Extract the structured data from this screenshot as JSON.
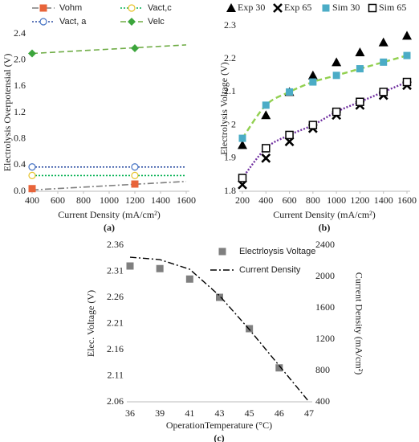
{
  "chart_data": [
    {
      "type": "line",
      "panel_label": "(a)",
      "xlabel": "Current Density (mA/cm²)",
      "ylabel": "Electrolysis Overpotensial (V)",
      "xlim": [
        400,
        1600
      ],
      "xticks": [
        400,
        600,
        800,
        1000,
        1200,
        1400,
        1600
      ],
      "ylim": [
        0,
        2.4
      ],
      "yticks": [
        {
          "value": 0,
          "label": "0.0"
        },
        0.4,
        0.8,
        1.2,
        1.6,
        {
          "value": 2,
          "label": "2.0"
        },
        2.4
      ],
      "series": [
        {
          "name": "Vohm",
          "color": "#7f7f7f",
          "line_style": "dashdot",
          "marker": "square",
          "marker_color": "#e8643a",
          "line_x": [
            400,
            1600
          ],
          "line_values": [
            0.02,
            0.15
          ],
          "x": [
            400,
            1200
          ],
          "values": [
            0.04,
            0.11
          ]
        },
        {
          "name": "Vact,c",
          "color": "#00b050",
          "line_style": "dotted",
          "marker": "open-circle",
          "marker_color": "#e6c229",
          "line_x": [
            400,
            1600
          ],
          "line_values": [
            0.24,
            0.24
          ],
          "x": [
            400,
            1200
          ],
          "values": [
            0.24,
            0.24
          ]
        },
        {
          "name": "Vact, a",
          "color": "#2e4fa3",
          "line_style": "dotted",
          "marker": "open-circle",
          "marker_color": "#4472c4",
          "line_x": [
            400,
            1600
          ],
          "line_values": [
            0.37,
            0.37
          ],
          "x": [
            400,
            1200
          ],
          "values": [
            0.37,
            0.37
          ]
        },
        {
          "name": "Velc",
          "color": "#70ad47",
          "line_style": "dashed",
          "marker": "diamond",
          "marker_color": "#3ca53c",
          "line_x": [
            400,
            1600
          ],
          "line_values": [
            2.1,
            2.23
          ],
          "x": [
            400,
            1200
          ],
          "values": [
            2.1,
            2.18
          ]
        }
      ]
    },
    {
      "type": "scatter",
      "panel_label": "(b)",
      "xlabel": "Current Density (mA/cm²)",
      "ylabel": "Electrolysis Voltage (V)",
      "xlim": [
        200,
        1600
      ],
      "xticks": [
        200,
        400,
        600,
        800,
        1000,
        1200,
        1400,
        1600
      ],
      "ylim": [
        1.8,
        2.3
      ],
      "yticks": [
        1.8,
        1.9,
        2,
        2.1,
        2.2,
        2.3
      ],
      "x": [
        200,
        400,
        600,
        800,
        1000,
        1200,
        1400,
        1600
      ],
      "series": [
        {
          "name": "Exp 30",
          "marker": "triangle",
          "color": "#000000",
          "values": [
            1.94,
            2.03,
            2.1,
            2.15,
            2.19,
            2.22,
            2.25,
            2.27
          ]
        },
        {
          "name": "Exp 65",
          "marker": "x",
          "color": "#000000",
          "values": [
            1.82,
            1.9,
            1.95,
            1.99,
            2.03,
            2.06,
            2.09,
            2.12
          ]
        },
        {
          "name": "Sim 30",
          "marker": "square",
          "color": "#4bacc6",
          "trend_color": "#92d050",
          "trend_style": "dashed",
          "values": [
            1.96,
            2.06,
            2.1,
            2.13,
            2.15,
            2.17,
            2.19,
            2.21
          ]
        },
        {
          "name": "Sim 65",
          "marker": "open-square",
          "color": "#000000",
          "trend_color": "#7030a0",
          "trend_style": "dotted",
          "values": [
            1.84,
            1.93,
            1.97,
            2.0,
            2.04,
            2.07,
            2.1,
            2.13
          ]
        }
      ]
    },
    {
      "type": "combo",
      "panel_label": "(c)",
      "xlabel": "OperationTemperature (°C)",
      "ylabel": "Elec. Voltage (V)",
      "y2label": "Current Density (mA/cm²)",
      "categories": [
        "36",
        "39",
        "41",
        "43",
        "45",
        "46",
        "47"
      ],
      "ylim": [
        2.06,
        2.36
      ],
      "yticks": [
        2.06,
        2.11,
        2.16,
        2.21,
        2.26,
        2.31,
        2.36
      ],
      "y2lim": [
        400,
        2400
      ],
      "y2ticks": [
        400,
        800,
        1200,
        1600,
        2000,
        2400
      ],
      "series": [
        {
          "name": "Electrloysis Voltage",
          "marker": "square",
          "color": "#7f7f7f",
          "values": [
            2.32,
            2.315,
            2.295,
            2.26,
            2.2,
            2.125,
            null
          ]
        },
        {
          "name": "Current Density",
          "axis": "y2",
          "color": "#000000",
          "line_style": "dashdot",
          "values": [
            2246,
            2215,
            2092,
            1754,
            1323,
            862,
            400
          ]
        }
      ]
    }
  ]
}
